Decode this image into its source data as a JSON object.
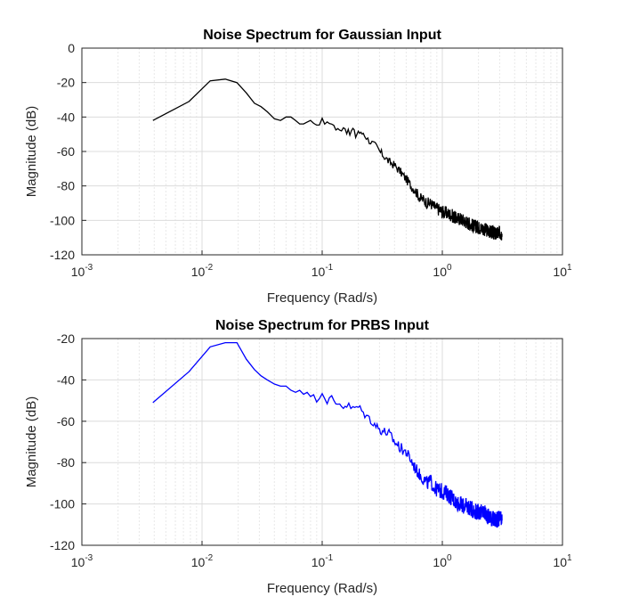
{
  "chart_data": [
    {
      "type": "line",
      "title": "Noise Spectrum for Gaussian Input",
      "xlabel": "Frequency (Rad/s)",
      "ylabel": "Magnitude (dB)",
      "xscale": "log",
      "xlim": [
        0.001,
        10
      ],
      "ylim": [
        -120,
        0
      ],
      "xticks": [
        -3,
        -2,
        -1,
        0,
        1
      ],
      "yticks": [
        "0",
        "-20",
        "-40",
        "-60",
        "-80",
        "-100",
        "-120"
      ],
      "grid": true,
      "series": [
        {
          "color": "#000000",
          "x": [
            0.0039,
            0.0078,
            0.0117,
            0.0156,
            0.0195,
            0.0234,
            0.0273,
            0.031,
            0.035,
            0.04,
            0.045,
            0.05,
            0.055,
            0.06,
            0.065,
            0.07,
            0.08,
            0.09,
            0.1,
            0.11,
            0.12,
            0.13,
            0.14,
            0.15,
            0.16,
            0.17,
            0.18,
            0.19,
            0.2,
            0.21,
            0.22,
            0.24,
            0.26,
            0.28,
            0.3,
            0.33,
            0.36,
            0.4,
            0.45,
            0.5,
            0.55,
            0.6,
            0.65,
            0.7,
            0.75,
            0.8,
            0.85,
            0.9,
            1.0,
            1.1,
            1.2,
            1.3,
            1.4,
            1.5,
            1.6,
            1.7,
            1.8,
            2.0,
            2.2,
            2.4,
            2.6,
            2.8,
            3.0,
            3.14
          ],
          "y": [
            -42,
            -31,
            -19,
            -18,
            -20,
            -26,
            -32,
            -34,
            -37,
            -41,
            -42,
            -40,
            -40,
            -42,
            -44,
            -44,
            -42,
            -44,
            -42,
            -44,
            -43,
            -47,
            -48,
            -45,
            -48,
            -50,
            -47,
            -51,
            -48,
            -50,
            -49,
            -53,
            -55,
            -57,
            -60,
            -63,
            -66,
            -68,
            -72,
            -76,
            -80,
            -83,
            -87,
            -88,
            -90,
            -90,
            -92,
            -93,
            -95,
            -96,
            -97,
            -99,
            -99,
            -100,
            -101,
            -102,
            -103,
            -104,
            -105,
            -106,
            -107,
            -108,
            -107,
            -108
          ],
          "noise_db": 2.5
        }
      ]
    },
    {
      "type": "line",
      "title": "Noise Spectrum for PRBS Input",
      "xlabel": "Frequency (Rad/s)",
      "ylabel": "Magnitude (dB)",
      "xscale": "log",
      "xlim": [
        0.001,
        10
      ],
      "ylim": [
        -120,
        -20
      ],
      "xticks": [
        -3,
        -2,
        -1,
        0,
        1
      ],
      "yticks": [
        "-20",
        "-40",
        "-60",
        "-80",
        "-100",
        "-120"
      ],
      "grid": true,
      "series": [
        {
          "color": "#0000ff",
          "x": [
            0.0039,
            0.0078,
            0.0117,
            0.0156,
            0.0195,
            0.0234,
            0.0273,
            0.031,
            0.035,
            0.04,
            0.045,
            0.05,
            0.055,
            0.06,
            0.065,
            0.07,
            0.075,
            0.08,
            0.09,
            0.1,
            0.11,
            0.12,
            0.13,
            0.14,
            0.15,
            0.16,
            0.18,
            0.2,
            0.22,
            0.24,
            0.26,
            0.28,
            0.3,
            0.33,
            0.36,
            0.4,
            0.45,
            0.5,
            0.55,
            0.6,
            0.65,
            0.7,
            0.75,
            0.8,
            0.85,
            0.9,
            1.0,
            1.1,
            1.2,
            1.3,
            1.4,
            1.5,
            1.6,
            1.7,
            1.8,
            2.0,
            2.2,
            2.4,
            2.6,
            2.8,
            3.0,
            3.14
          ],
          "y": [
            -51,
            -36,
            -24,
            -22,
            -22,
            -30,
            -35,
            -38,
            -40,
            -42,
            -43,
            -43,
            -45,
            -46,
            -45,
            -47,
            -46,
            -48,
            -49,
            -46,
            -50,
            -49,
            -52,
            -51,
            -53,
            -52,
            -54,
            -53,
            -56,
            -58,
            -60,
            -62,
            -64,
            -65,
            -66,
            -70,
            -73,
            -75,
            -79,
            -83,
            -86,
            -88,
            -90,
            -89,
            -92,
            -93,
            -94,
            -95,
            -97,
            -99,
            -100,
            -101,
            -101,
            -102,
            -103,
            -104,
            -104,
            -106,
            -107,
            -108,
            -107,
            -108
          ],
          "noise_db": 2.5
        }
      ]
    }
  ]
}
